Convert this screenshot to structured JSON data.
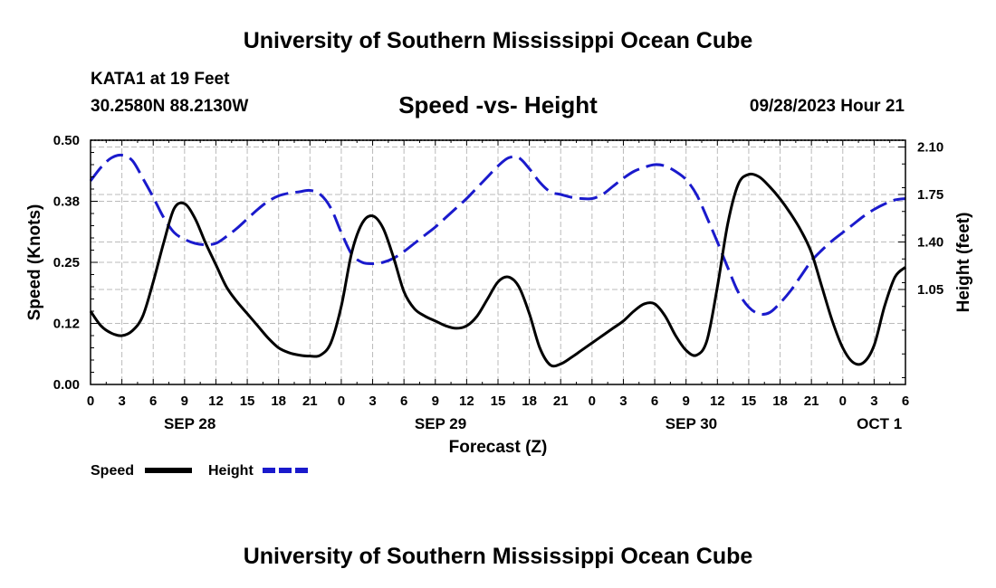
{
  "header": {
    "title": "University of Southern Mississippi Ocean Cube",
    "footer_title": "University of Southern Mississippi Ocean Cube",
    "station": "KATA1 at 19 Feet",
    "coords": "30.2580N  88.2130W",
    "datetime": "09/28/2023 Hour 21"
  },
  "chart_data": {
    "type": "line",
    "title": "Speed -vs- Height",
    "xlabel": "Forecast (Z)",
    "ylabel_left": "Speed (Knots)",
    "ylabel_right": "Height (feet)",
    "x_range": [
      0,
      78
    ],
    "ylim_left": [
      0,
      0.5
    ],
    "ylim_right": [
      0.35,
      2.15
    ],
    "left_ticks": [
      "0.00",
      "0.12",
      "0.25",
      "0.38",
      "0.50"
    ],
    "right_ticks": [
      {
        "value": 1.05,
        "label": "1.05"
      },
      {
        "value": 1.4,
        "label": "1.40"
      },
      {
        "value": 1.75,
        "label": "1.75"
      },
      {
        "value": 2.1,
        "label": "2.10"
      }
    ],
    "x_ticks": [
      {
        "x": 0,
        "label": "0"
      },
      {
        "x": 3,
        "label": "3"
      },
      {
        "x": 6,
        "label": "6"
      },
      {
        "x": 9,
        "label": "9"
      },
      {
        "x": 12,
        "label": "12"
      },
      {
        "x": 15,
        "label": "15"
      },
      {
        "x": 18,
        "label": "18"
      },
      {
        "x": 21,
        "label": "21"
      },
      {
        "x": 24,
        "label": "0"
      },
      {
        "x": 27,
        "label": "3"
      },
      {
        "x": 30,
        "label": "6"
      },
      {
        "x": 33,
        "label": "9"
      },
      {
        "x": 36,
        "label": "12"
      },
      {
        "x": 39,
        "label": "15"
      },
      {
        "x": 42,
        "label": "18"
      },
      {
        "x": 45,
        "label": "21"
      },
      {
        "x": 48,
        "label": "0"
      },
      {
        "x": 51,
        "label": "3"
      },
      {
        "x": 54,
        "label": "6"
      },
      {
        "x": 57,
        "label": "9"
      },
      {
        "x": 60,
        "label": "12"
      },
      {
        "x": 63,
        "label": "15"
      },
      {
        "x": 66,
        "label": "18"
      },
      {
        "x": 69,
        "label": "21"
      },
      {
        "x": 72,
        "label": "0"
      },
      {
        "x": 75,
        "label": "3"
      },
      {
        "x": 78,
        "label": "6"
      }
    ],
    "day_labels": [
      {
        "x": 9.5,
        "label": "SEP 28"
      },
      {
        "x": 33.5,
        "label": "SEP 29"
      },
      {
        "x": 57.5,
        "label": "SEP 30"
      },
      {
        "x": 75.5,
        "label": "OCT 1"
      }
    ],
    "legend": [
      {
        "name": "Speed",
        "color": "#000000",
        "style": "solid"
      },
      {
        "name": "Height",
        "color": "#1a1acc",
        "style": "dashed"
      }
    ],
    "series": [
      {
        "name": "Speed",
        "axis": "left",
        "color": "#000000",
        "x": [
          0,
          1,
          2,
          3,
          4,
          5,
          6,
          7,
          8,
          9,
          10,
          11,
          12,
          13,
          14,
          15,
          16,
          17,
          18,
          19,
          20,
          21,
          22,
          23,
          24,
          25,
          26,
          27,
          28,
          29,
          30,
          31,
          32,
          33,
          34,
          35,
          36,
          37,
          38,
          39,
          40,
          41,
          42,
          43,
          44,
          45,
          46,
          47,
          48,
          49,
          50,
          51,
          52,
          53,
          54,
          55,
          56,
          57,
          58,
          59,
          60,
          61,
          62,
          63,
          64,
          65,
          66,
          67,
          68,
          69,
          70,
          71,
          72,
          73,
          74,
          75,
          76,
          77,
          78
        ],
        "values": [
          0.15,
          0.12,
          0.105,
          0.1,
          0.11,
          0.14,
          0.21,
          0.29,
          0.36,
          0.37,
          0.34,
          0.29,
          0.245,
          0.2,
          0.17,
          0.145,
          0.12,
          0.095,
          0.075,
          0.065,
          0.06,
          0.058,
          0.06,
          0.085,
          0.16,
          0.27,
          0.33,
          0.345,
          0.32,
          0.26,
          0.19,
          0.155,
          0.14,
          0.13,
          0.12,
          0.115,
          0.12,
          0.14,
          0.175,
          0.21,
          0.22,
          0.2,
          0.145,
          0.075,
          0.04,
          0.042,
          0.055,
          0.07,
          0.085,
          0.1,
          0.115,
          0.13,
          0.15,
          0.165,
          0.165,
          0.14,
          0.1,
          0.07,
          0.06,
          0.09,
          0.2,
          0.33,
          0.41,
          0.43,
          0.425,
          0.405,
          0.38,
          0.35,
          0.315,
          0.27,
          0.2,
          0.13,
          0.075,
          0.045,
          0.045,
          0.08,
          0.16,
          0.22,
          0.24
        ]
      },
      {
        "name": "Height",
        "axis": "right",
        "color": "#1a1acc",
        "x": [
          0,
          1,
          2,
          3,
          4,
          5,
          6,
          7,
          8,
          9,
          10,
          11,
          12,
          13,
          14,
          15,
          16,
          17,
          18,
          19,
          20,
          21,
          22,
          23,
          24,
          25,
          26,
          27,
          28,
          29,
          30,
          31,
          32,
          33,
          34,
          35,
          36,
          37,
          38,
          39,
          40,
          41,
          42,
          43,
          44,
          45,
          46,
          47,
          48,
          49,
          50,
          51,
          52,
          53,
          54,
          55,
          56,
          57,
          58,
          59,
          60,
          61,
          62,
          63,
          64,
          65,
          66,
          67,
          68,
          69,
          70,
          71,
          72,
          73,
          74,
          75,
          76,
          77,
          78
        ],
        "values": [
          1.85,
          1.95,
          2.02,
          2.04,
          2.0,
          1.87,
          1.73,
          1.58,
          1.47,
          1.42,
          1.39,
          1.38,
          1.39,
          1.44,
          1.5,
          1.57,
          1.64,
          1.7,
          1.74,
          1.76,
          1.77,
          1.78,
          1.75,
          1.65,
          1.47,
          1.31,
          1.25,
          1.24,
          1.25,
          1.28,
          1.33,
          1.39,
          1.45,
          1.51,
          1.58,
          1.65,
          1.72,
          1.8,
          1.88,
          1.96,
          2.02,
          2.02,
          1.94,
          1.84,
          1.77,
          1.75,
          1.73,
          1.72,
          1.72,
          1.75,
          1.81,
          1.87,
          1.92,
          1.95,
          1.97,
          1.96,
          1.92,
          1.86,
          1.75,
          1.58,
          1.4,
          1.21,
          1.03,
          0.92,
          0.87,
          0.88,
          0.95,
          1.04,
          1.15,
          1.26,
          1.34,
          1.41,
          1.47,
          1.53,
          1.59,
          1.64,
          1.68,
          1.71,
          1.72
        ]
      }
    ]
  }
}
